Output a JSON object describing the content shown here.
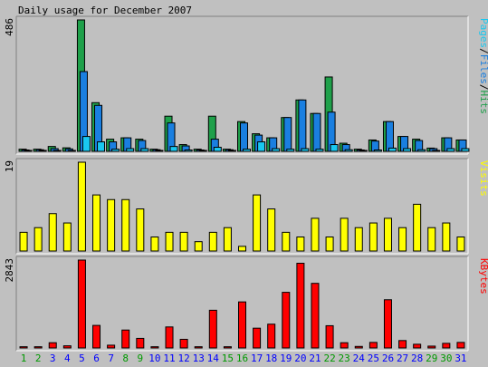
{
  "chart_data": {
    "type": "bar",
    "title": "Daily usage for December 2007",
    "categories": [
      "1",
      "2",
      "3",
      "4",
      "5",
      "6",
      "7",
      "8",
      "9",
      "10",
      "11",
      "12",
      "13",
      "14",
      "15",
      "16",
      "17",
      "18",
      "19",
      "20",
      "21",
      "22",
      "23",
      "24",
      "25",
      "26",
      "27",
      "28",
      "29",
      "30",
      "31"
    ],
    "weekend_days": [
      1,
      2,
      8,
      9,
      15,
      16,
      22,
      23,
      29,
      30
    ],
    "panels": [
      {
        "name": "hits",
        "ymax_label": "486",
        "ylim": [
          0,
          486
        ],
        "legend": [
          "Pages",
          "/",
          "Files",
          "/",
          "Hits"
        ],
        "series": [
          {
            "name": "Hits",
            "color": "#1fa04a",
            "values": [
              8,
              8,
              18,
              13,
              486,
              180,
              45,
              50,
              45,
              8,
              130,
              25,
              8,
              130,
              8,
              110,
              65,
              50,
              125,
              190,
              140,
              275,
              30,
              8,
              42,
              110,
              55,
              45,
              12,
              50,
              42
            ]
          },
          {
            "name": "Files",
            "color": "#1a7fe0",
            "values": [
              5,
              6,
              10,
              9,
              295,
              170,
              35,
              50,
              40,
              6,
              105,
              20,
              5,
              45,
              6,
              105,
              60,
              50,
              125,
              190,
              140,
              145,
              25,
              5,
              38,
              110,
              55,
              40,
              10,
              50,
              42
            ]
          },
          {
            "name": "Pages",
            "color": "#19c8f0",
            "values": [
              2,
              2,
              3,
              3,
              55,
              35,
              8,
              10,
              10,
              2,
              18,
              5,
              2,
              15,
              2,
              8,
              35,
              10,
              8,
              10,
              8,
              25,
              6,
              2,
              5,
              12,
              10,
              6,
              2,
              10,
              10
            ]
          }
        ]
      },
      {
        "name": "visits",
        "ymax_label": "19",
        "ylim": [
          0,
          19
        ],
        "legend": [
          "Visits"
        ],
        "series": [
          {
            "name": "Visits",
            "color": "#ffff00",
            "values": [
              4,
              5,
              8,
              6,
              19,
              12,
              11,
              11,
              9,
              3,
              4,
              4,
              2,
              4,
              5,
              1,
              12,
              9,
              4,
              3,
              7,
              3,
              7,
              5,
              6,
              7,
              5,
              10,
              5,
              6,
              3
            ]
          }
        ]
      },
      {
        "name": "kbytes",
        "ymax_label": "2843",
        "ylim": [
          0,
          2843
        ],
        "legend": [
          "KBytes"
        ],
        "series": [
          {
            "name": "KBytes",
            "color": "#ff0000",
            "values": [
              40,
              40,
              170,
              70,
              2843,
              730,
              90,
              580,
              310,
              40,
              680,
              280,
              40,
              1220,
              40,
              1490,
              640,
              770,
              1800,
              2740,
              2090,
              720,
              170,
              50,
              180,
              1560,
              240,
              120,
              60,
              150,
              180
            ]
          }
        ]
      }
    ],
    "grid": false
  },
  "colors": {
    "background": "#c0c0c0",
    "weekday_label": "#0000ff",
    "weekend_label": "#009900",
    "title_text": "#000000"
  }
}
